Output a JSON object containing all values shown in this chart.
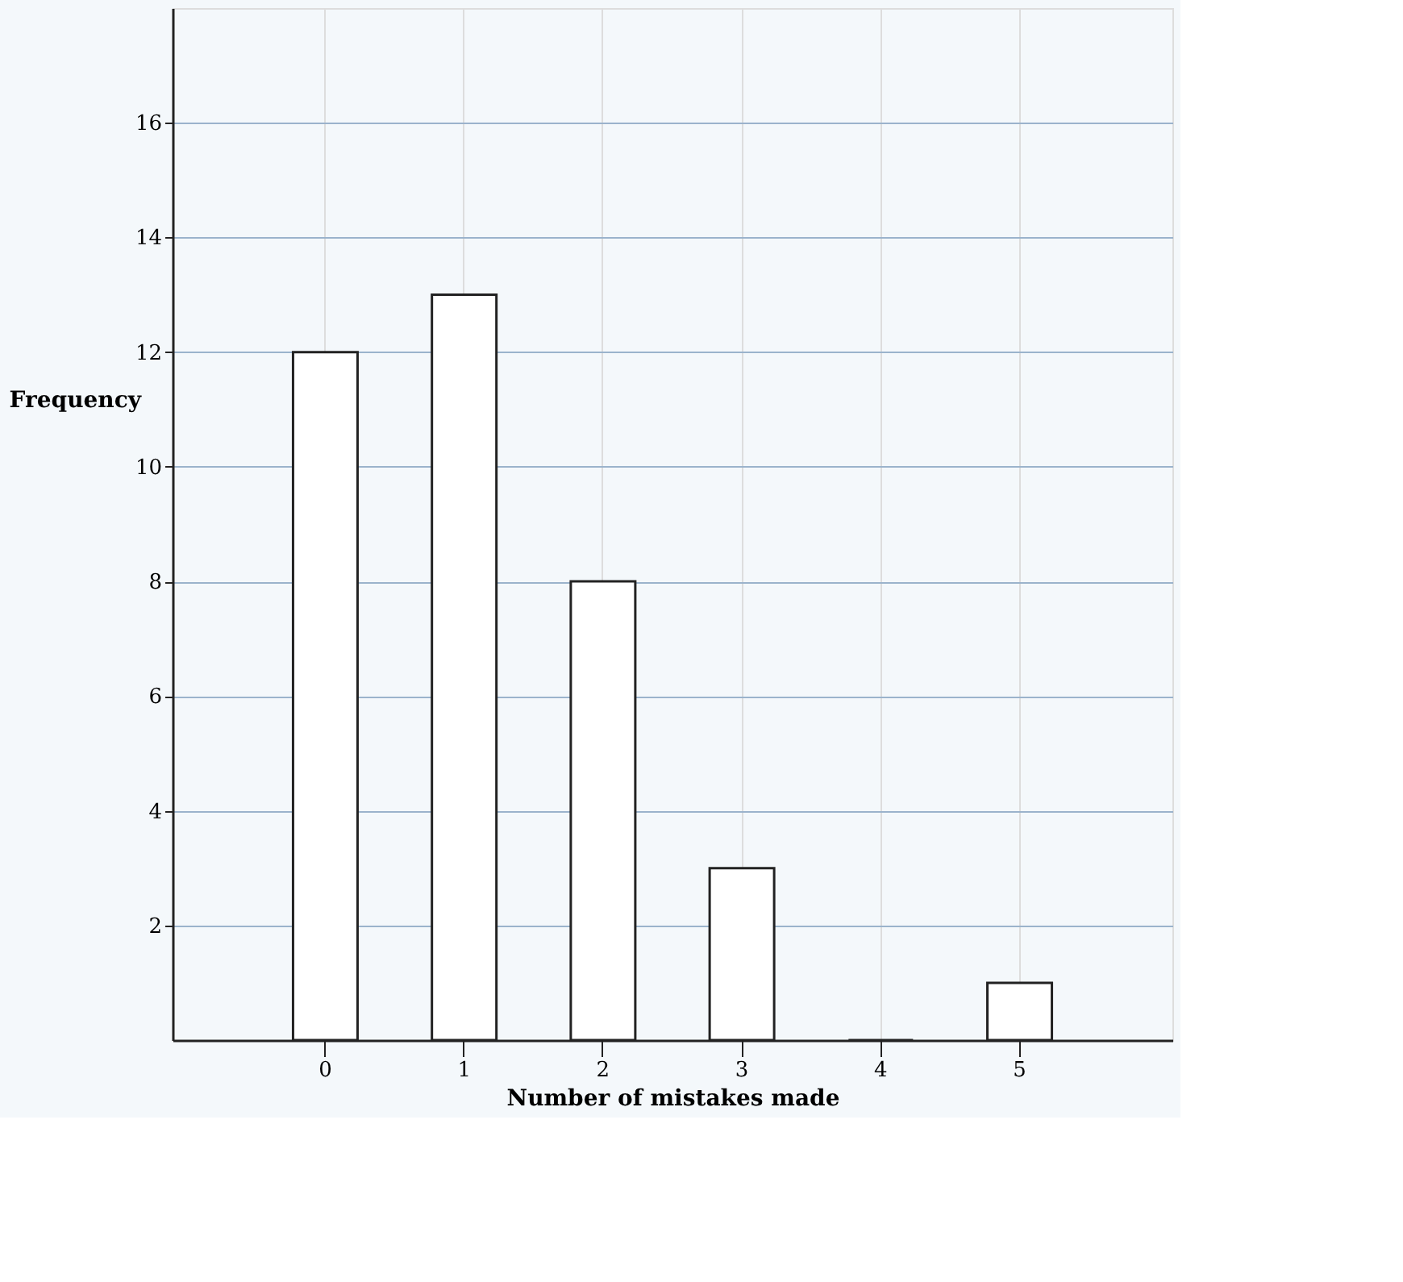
{
  "chart_data": {
    "type": "bar",
    "xlabel": "Number of mistakes made",
    "ylabel": "Frequency",
    "categories": [
      "0",
      "1",
      "2",
      "3",
      "4",
      "5"
    ],
    "values": [
      12,
      13,
      8,
      3,
      0,
      1
    ],
    "color": "#ffffff",
    "ylim": [
      0,
      18
    ],
    "yticks": [
      2,
      4,
      6,
      8,
      10,
      12,
      14,
      16
    ],
    "grid": true
  }
}
